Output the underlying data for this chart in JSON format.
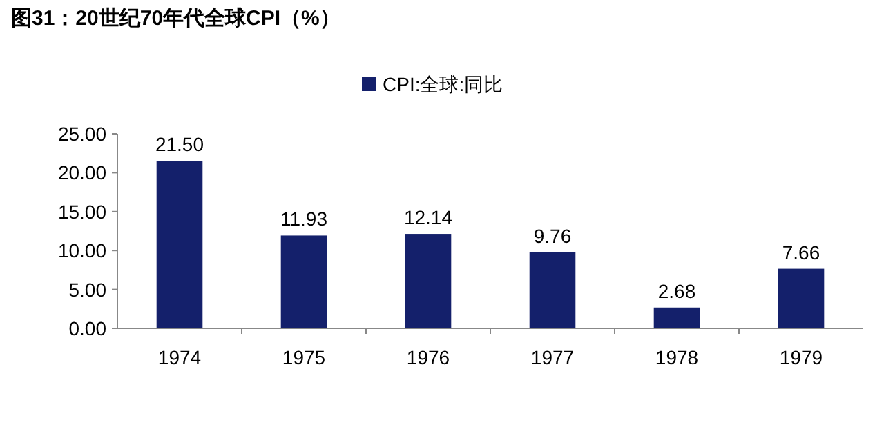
{
  "chart_data": {
    "type": "bar",
    "title": "图31：20世纪70年代全球CPI（%）",
    "categories": [
      "1974",
      "1975",
      "1976",
      "1977",
      "1978",
      "1979"
    ],
    "series": [
      {
        "name": "CPI:全球:同比",
        "color": "#14206b",
        "values": [
          21.5,
          11.93,
          12.14,
          9.76,
          2.68,
          7.66
        ],
        "value_labels": [
          "21.50",
          "11.93",
          "12.14",
          "9.76",
          "2.68",
          "7.66"
        ]
      }
    ],
    "ylim": [
      0,
      25
    ],
    "yticks": [
      {
        "value": 0,
        "label": "0.00"
      },
      {
        "value": 5,
        "label": "5.00"
      },
      {
        "value": 10,
        "label": "10.00"
      },
      {
        "value": 15,
        "label": "15.00"
      },
      {
        "value": 20,
        "label": "20.00"
      },
      {
        "value": 25,
        "label": "25.00"
      }
    ],
    "legend": "top",
    "grid": false
  }
}
